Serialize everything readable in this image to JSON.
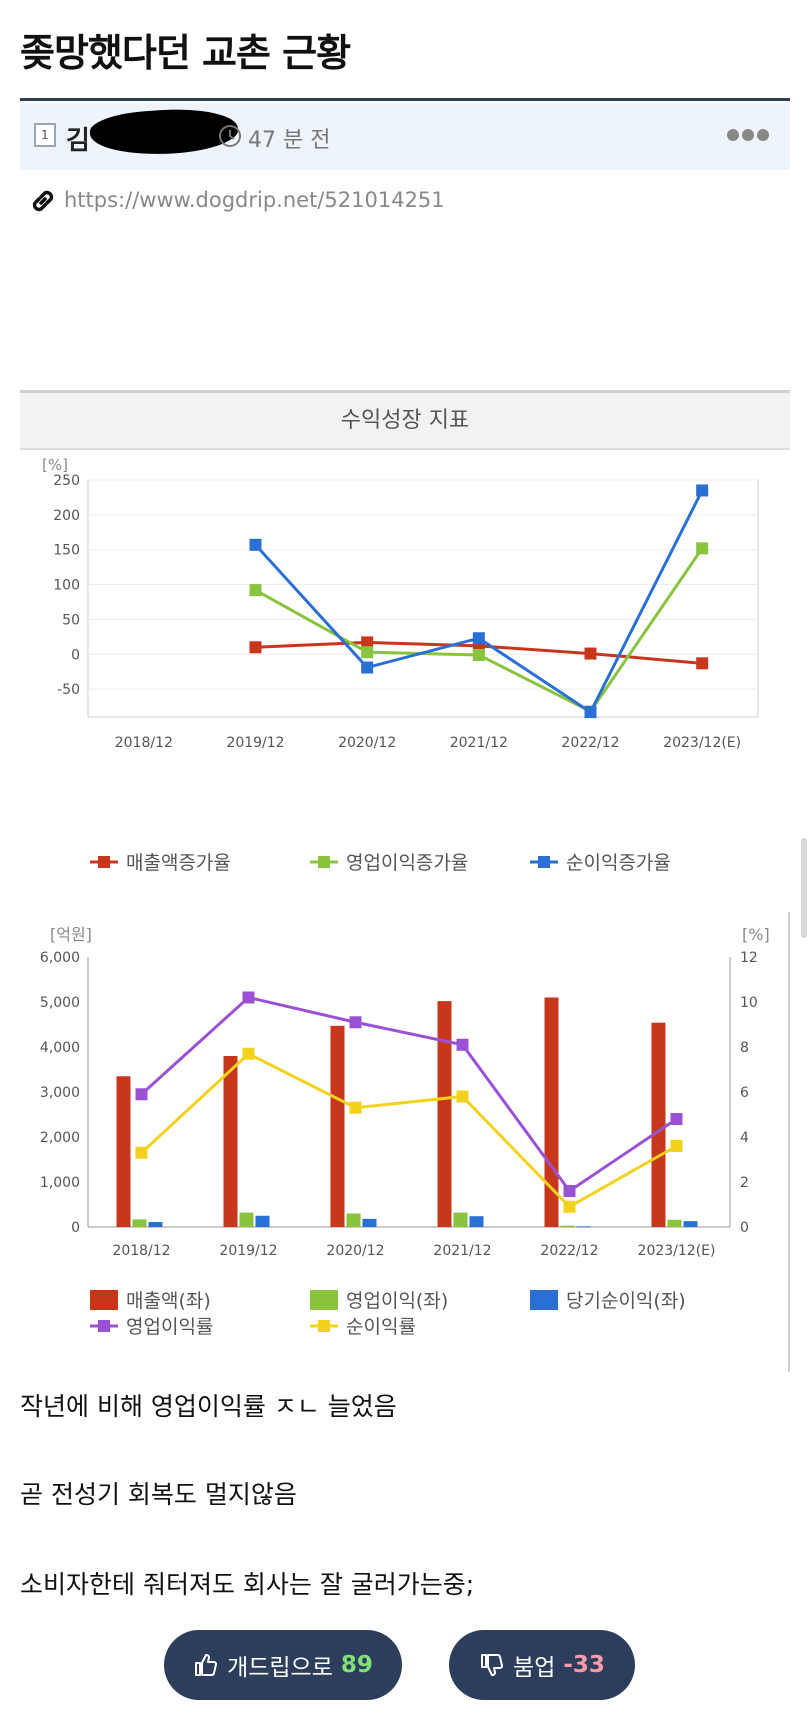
{
  "post": {
    "title": "좆망했다던 교촌 근황",
    "author_prefix": "김",
    "time": "47 분 전",
    "link": "https://www.dogdrip.net/521014251"
  },
  "chart1": {
    "header": "수익성장 지표",
    "unit": "[%]",
    "type": "line",
    "categories": [
      "2018/12",
      "2019/12",
      "2020/12",
      "2021/12",
      "2022/12",
      "2023/12(E)"
    ],
    "y_ticks": [
      "250",
      "200",
      "150",
      "100",
      "50",
      "0",
      "-50"
    ],
    "ylim": [
      -90,
      250
    ],
    "series": [
      {
        "name": "매출액증가율",
        "color": "#c8361c",
        "values": [
          null,
          10,
          17,
          12,
          1,
          -13
        ]
      },
      {
        "name": "영업이익증가율",
        "color": "#88c43c",
        "values": [
          null,
          92,
          3,
          -1,
          -82,
          152
        ]
      },
      {
        "name": "순이익증가율",
        "color": "#2a6fd6",
        "values": [
          null,
          157,
          -19,
          23,
          -83,
          235
        ]
      }
    ]
  },
  "chart2": {
    "unit_left": "[억원]",
    "unit_right": "[%]",
    "type": "bar+line",
    "categories": [
      "2018/12",
      "2019/12",
      "2020/12",
      "2021/12",
      "2022/12",
      "2023/12(E)"
    ],
    "y_left_ticks": [
      "6,000",
      "5,000",
      "4,000",
      "3,000",
      "2,000",
      "1,000",
      "0"
    ],
    "y_right_ticks": [
      "12",
      "10",
      "8",
      "6",
      "4",
      "2",
      "0"
    ],
    "ylim_left": [
      0,
      6000
    ],
    "ylim_right": [
      0,
      12
    ],
    "bars": [
      {
        "name": "매출액(좌)",
        "color": "#c8361c",
        "values": [
          3350,
          3800,
          4470,
          5020,
          5100,
          4540
        ]
      },
      {
        "name": "영업이익(좌)",
        "color": "#88c43c",
        "values": [
          170,
          320,
          300,
          320,
          30,
          160
        ]
      },
      {
        "name": "당기순이익(좌)",
        "color": "#2a6fd6",
        "values": [
          110,
          250,
          180,
          240,
          15,
          130
        ]
      }
    ],
    "lines": [
      {
        "name": "영업이익률",
        "color": "#9b51d6",
        "values": [
          5.9,
          10.2,
          9.1,
          8.1,
          1.6,
          4.8
        ]
      },
      {
        "name": "순이익률",
        "color": "#f2d21c",
        "values": [
          3.3,
          7.7,
          5.3,
          5.8,
          0.9,
          3.6
        ]
      }
    ]
  },
  "body_lines": [
    "작년에 비해 영업이익률 ㅈㄴ 늘었음",
    "곧 전성기 회복도 멀지않음",
    "소비자한테 줘터져도 회사는 잘 굴러가는중;"
  ],
  "votes": {
    "up_label": "개드립으로",
    "up_count": "89",
    "down_label": "붐업",
    "down_count": "-33"
  }
}
